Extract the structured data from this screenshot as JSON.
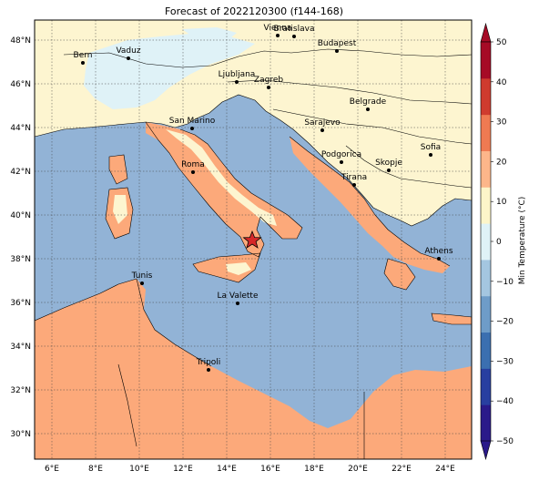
{
  "title": "Forecast of 2022120300 (f144-168)",
  "lon_ticks": [
    "6°E",
    "8°E",
    "10°E",
    "12°E",
    "14°E",
    "16°E",
    "18°E",
    "20°E",
    "22°E",
    "24°E"
  ],
  "lat_ticks": [
    "48°N",
    "46°N",
    "44°N",
    "42°N",
    "40°N",
    "38°N",
    "36°N",
    "34°N",
    "32°N",
    "30°N"
  ],
  "cities": [
    {
      "name": "Bern"
    },
    {
      "name": "Vaduz"
    },
    {
      "name": "Vienna"
    },
    {
      "name": "Bratislava"
    },
    {
      "name": "Budapest"
    },
    {
      "name": "Ljubljana"
    },
    {
      "name": "Zagreb"
    },
    {
      "name": "Belgrade"
    },
    {
      "name": "San Marino"
    },
    {
      "name": "Sarajevo"
    },
    {
      "name": "Sofia"
    },
    {
      "name": "Podgorica"
    },
    {
      "name": "Skopje"
    },
    {
      "name": "Roma"
    },
    {
      "name": "Tirana"
    },
    {
      "name": "Athens"
    },
    {
      "name": "Tunis"
    },
    {
      "name": "La Valette"
    },
    {
      "name": "Tripoli"
    }
  ],
  "colorbar": {
    "label": "Min Temperature (°C)",
    "ticks": [
      "50",
      "40",
      "30",
      "20",
      "10",
      "0",
      "−10",
      "−20",
      "−30",
      "−40",
      "−50"
    ],
    "colors": [
      "#2a1a8a",
      "#283fa0",
      "#3b6fb0",
      "#6e9cc8",
      "#a4c6e0",
      "#dff2f7",
      "#fdf5c9",
      "#fdb68a",
      "#ef7a52",
      "#cf3b2e",
      "#a60b26"
    ]
  },
  "legend_colors": {
    "sea": "#92b3d6",
    "land_cool": "#fdf5d0",
    "land_warm": "#fca97a",
    "cold_patch": "#dff2f7",
    "marker": "#d62728"
  }
}
